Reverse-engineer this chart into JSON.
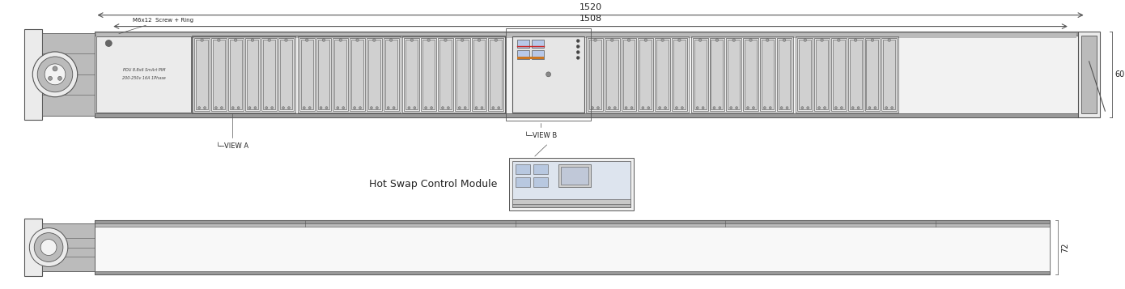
{
  "bg_color": "#ffffff",
  "line_color": "#555555",
  "gray_fill": "#d8d8d8",
  "light_gray": "#ebebeb",
  "dark_gray": "#999999",
  "mid_gray": "#bbbbbb",
  "body_fill": "#f2f2f2",
  "fig_width": 13.9,
  "fig_height": 3.57,
  "dim_1520": "1520",
  "dim_1508": "1508",
  "dim_60": "60",
  "dim_72": "72",
  "label_m6x12": "M6x12  Screw + Ring",
  "label_view_a": "└─VIEW A",
  "label_view_b": "└─VIEW B",
  "label_pdu1": "PDU 8.8x6 SmArt PIM",
  "label_pdu2": "200-250v 16A 1Phase",
  "label_hot_swap": "Hot Swap Control Module"
}
